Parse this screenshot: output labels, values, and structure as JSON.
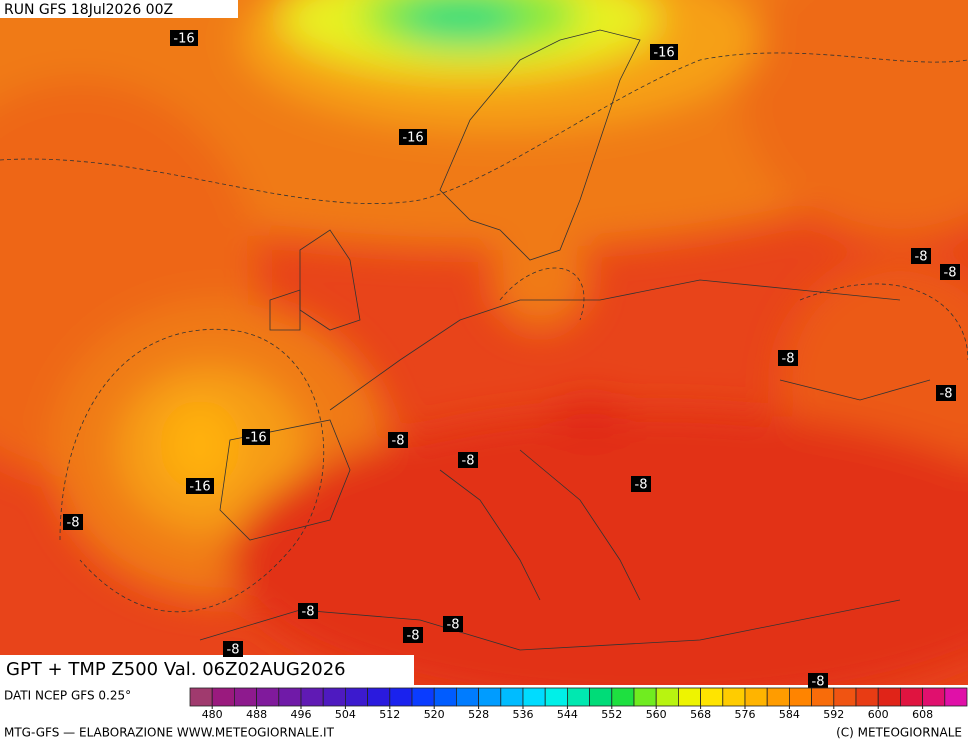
{
  "header": {
    "run": "RUN GFS 18Jul2026 00Z"
  },
  "footer": {
    "title": "GPT + TMP Z500 Val. 06Z02AUG2026",
    "source": "DATI NCEP GFS 0.25°",
    "credit": "MTG-GFS — ELABORAZIONE WWW.METEOGIORNALE.IT",
    "copyright": "(C) METEOGIORNALE"
  },
  "colorbar": {
    "range": [
      476,
      616
    ],
    "ticks": [
      480,
      488,
      496,
      504,
      512,
      520,
      528,
      536,
      544,
      552,
      560,
      568,
      576,
      584,
      592,
      600,
      608
    ],
    "colors": [
      "#a03a6e",
      "#9a1a7e",
      "#8e1a8e",
      "#801a9c",
      "#701aa8",
      "#601ab4",
      "#4e1ac0",
      "#3c1ace",
      "#2a1ade",
      "#1a22ee",
      "#0a3cff",
      "#005cff",
      "#007cff",
      "#009cff",
      "#00bcff",
      "#00dcff",
      "#00f0e8",
      "#00e8b0",
      "#00dc78",
      "#1ee040",
      "#70ec20",
      "#b8f410",
      "#eef400",
      "#ffe400",
      "#ffcc00",
      "#ffb400",
      "#ff9c00",
      "#ff8400",
      "#f86c0a",
      "#f05412",
      "#e83c14",
      "#e02418",
      "#e01440",
      "#e0106e",
      "#e010a8"
    ]
  },
  "map": {
    "contour_labels": [
      "-16",
      "-16",
      "-16",
      "-8",
      "-8",
      "-8",
      "-8",
      "-16",
      "-8",
      "-8",
      "-16",
      "-8",
      "-8",
      "-8",
      "-8",
      "-8",
      "-8",
      "-8"
    ]
  }
}
